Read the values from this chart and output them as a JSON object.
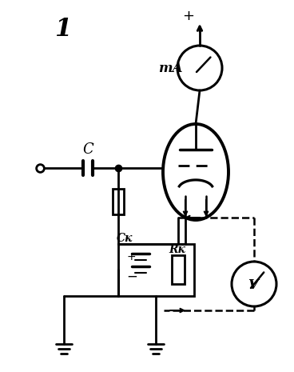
{
  "bg_color": "#ffffff",
  "line_color": "#000000",
  "title_num": "1",
  "label_C": "C",
  "label_CK": "Cк",
  "label_RK": "Rк",
  "label_mA": "mA",
  "label_V": "V",
  "label_plus_top": "+",
  "label_plus_bat": "+",
  "label_minus_bat": "−",
  "figsize": [
    3.68,
    4.65
  ],
  "dpi": 100
}
